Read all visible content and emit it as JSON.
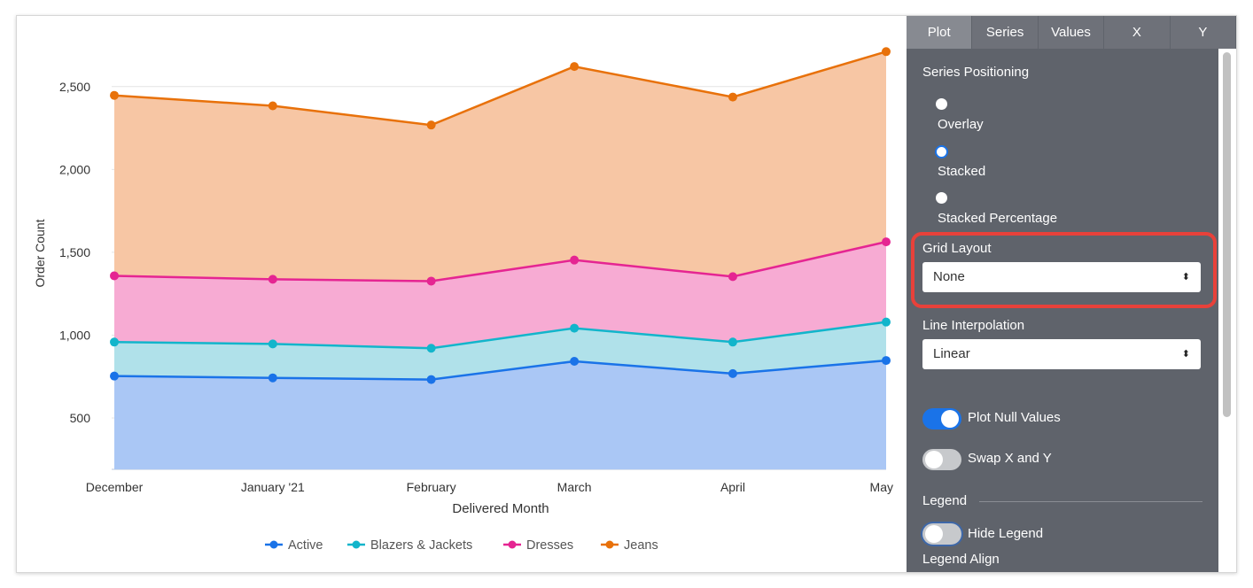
{
  "chart_data": {
    "type": "area",
    "stacked": true,
    "xlabel": "Delivered Month",
    "ylabel": "Order Count",
    "categories": [
      "December",
      "January '21",
      "February",
      "March",
      "April",
      "May"
    ],
    "yticks": [
      500,
      1000,
      1500,
      2000,
      2500
    ],
    "ytick_labels": [
      "500",
      "1,000",
      "1,500",
      "2,000",
      "2,500"
    ],
    "ylim": [
      190,
      2750
    ],
    "grid": true,
    "legend_position": "bottom",
    "series": [
      {
        "name": "Active",
        "color": "#1a73e8",
        "fill": "#aac7f5",
        "values": [
          753,
          742,
          732,
          842,
          768,
          847
        ]
      },
      {
        "name": "Blazers & Jackets",
        "color": "#12b5cb",
        "fill": "#b0e1ea",
        "values": [
          205,
          205,
          189,
          200,
          190,
          232
        ]
      },
      {
        "name": "Dresses",
        "color": "#e52592",
        "fill": "#f7abd3",
        "values": [
          400,
          390,
          405,
          411,
          395,
          484
        ]
      },
      {
        "name": "Jeans",
        "color": "#e8710a",
        "fill": "#f7c6a4",
        "values": [
          1089,
          1047,
          942,
          1168,
          1084,
          1148
        ]
      }
    ]
  },
  "panel": {
    "tabs": [
      "Plot",
      "Series",
      "Values",
      "X",
      "Y"
    ],
    "active_tab": "Plot",
    "series_positioning": {
      "label": "Series Positioning",
      "options": [
        "Overlay",
        "Stacked",
        "Stacked Percentage"
      ],
      "selected": "Stacked"
    },
    "grid_layout": {
      "label": "Grid Layout",
      "value": "None"
    },
    "line_interpolation": {
      "label": "Line Interpolation",
      "value": "Linear"
    },
    "plot_null_values": {
      "label": "Plot Null Values",
      "on": true
    },
    "swap_xy": {
      "label": "Swap X and Y",
      "on": false
    },
    "legend_section": "Legend",
    "hide_legend": {
      "label": "Hide Legend",
      "on": false
    },
    "legend_align": "Legend Align",
    "highlight_color": "#e8413a"
  }
}
